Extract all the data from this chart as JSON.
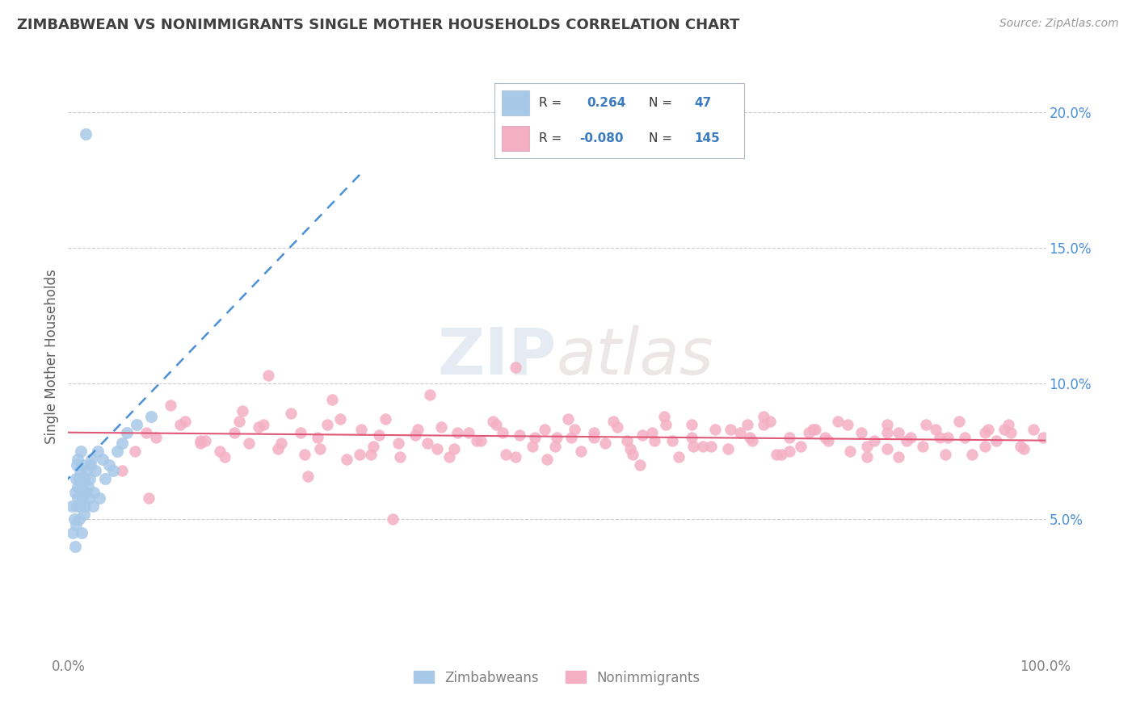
{
  "title": "ZIMBABWEAN VS NONIMMIGRANTS SINGLE MOTHER HOUSEHOLDS CORRELATION CHART",
  "source": "Source: ZipAtlas.com",
  "ylabel": "Single Mother Households",
  "xlim": [
    0.0,
    1.0
  ],
  "ylim": [
    0.0,
    0.22
  ],
  "yticks": [
    0.05,
    0.1,
    0.15,
    0.2
  ],
  "ytick_labels": [
    "5.0%",
    "10.0%",
    "15.0%",
    "20.0%"
  ],
  "xticks": [
    0.0,
    1.0
  ],
  "xtick_labels": [
    "0.0%",
    "100.0%"
  ],
  "blue_color": "#a8c8e8",
  "blue_edge": "#6aaed6",
  "pink_color": "#f4afc4",
  "pink_edge": "#e87090",
  "blue_line_color": "#4a90d9",
  "pink_line_color": "#e05878",
  "watermark_text": "ZIPatlas",
  "legend_r1": "R =  0.264",
  "legend_n1": "N =  47",
  "legend_r2": "R = -0.080",
  "legend_n2": "N = 145",
  "background_color": "#ffffff",
  "grid_color": "#cccccc",
  "title_color": "#404040",
  "axis_label_color": "#606060",
  "tick_color": "#808080",
  "legend_text_color": "#333333",
  "legend_value_color": "#3a7abf",
  "blue_x": [
    0.004,
    0.005,
    0.006,
    0.007,
    0.007,
    0.008,
    0.008,
    0.009,
    0.009,
    0.01,
    0.01,
    0.01,
    0.011,
    0.011,
    0.012,
    0.012,
    0.013,
    0.013,
    0.014,
    0.014,
    0.015,
    0.015,
    0.016,
    0.016,
    0.017,
    0.018,
    0.019,
    0.02,
    0.021,
    0.022,
    0.023,
    0.024,
    0.025,
    0.026,
    0.028,
    0.03,
    0.032,
    0.035,
    0.038,
    0.042,
    0.046,
    0.05,
    0.055,
    0.06,
    0.07,
    0.085,
    0.018
  ],
  "blue_y": [
    0.055,
    0.045,
    0.05,
    0.06,
    0.04,
    0.065,
    0.048,
    0.055,
    0.07,
    0.058,
    0.062,
    0.072,
    0.065,
    0.05,
    0.068,
    0.055,
    0.06,
    0.075,
    0.062,
    0.045,
    0.058,
    0.07,
    0.065,
    0.052,
    0.055,
    0.06,
    0.068,
    0.062,
    0.058,
    0.065,
    0.07,
    0.072,
    0.055,
    0.06,
    0.068,
    0.075,
    0.058,
    0.072,
    0.065,
    0.07,
    0.068,
    0.075,
    0.078,
    0.082,
    0.085,
    0.088,
    0.192
  ],
  "pink_x": [
    0.055,
    0.08,
    0.105,
    0.12,
    0.14,
    0.155,
    0.17,
    0.185,
    0.2,
    0.215,
    0.228,
    0.242,
    0.255,
    0.27,
    0.285,
    0.3,
    0.312,
    0.325,
    0.34,
    0.355,
    0.368,
    0.382,
    0.395,
    0.41,
    0.422,
    0.435,
    0.448,
    0.462,
    0.475,
    0.488,
    0.5,
    0.512,
    0.525,
    0.538,
    0.55,
    0.562,
    0.575,
    0.588,
    0.6,
    0.612,
    0.625,
    0.638,
    0.65,
    0.662,
    0.675,
    0.688,
    0.7,
    0.712,
    0.725,
    0.738,
    0.75,
    0.762,
    0.775,
    0.788,
    0.8,
    0.812,
    0.825,
    0.838,
    0.85,
    0.862,
    0.875,
    0.888,
    0.9,
    0.912,
    0.925,
    0.938,
    0.95,
    0.962,
    0.975,
    0.988,
    0.068,
    0.09,
    0.115,
    0.135,
    0.16,
    0.178,
    0.195,
    0.218,
    0.238,
    0.258,
    0.278,
    0.298,
    0.318,
    0.338,
    0.358,
    0.378,
    0.398,
    0.418,
    0.438,
    0.458,
    0.478,
    0.498,
    0.518,
    0.538,
    0.558,
    0.578,
    0.598,
    0.618,
    0.638,
    0.658,
    0.678,
    0.698,
    0.718,
    0.738,
    0.758,
    0.778,
    0.798,
    0.818,
    0.838,
    0.858,
    0.878,
    0.898,
    0.918,
    0.938,
    0.958,
    0.978,
    0.998,
    0.245,
    0.37,
    0.49,
    0.61,
    0.73,
    0.85,
    0.135,
    0.265,
    0.39,
    0.515,
    0.64,
    0.765,
    0.892,
    0.175,
    0.31,
    0.445,
    0.572,
    0.695,
    0.818,
    0.942,
    0.082,
    0.205,
    0.332,
    0.458,
    0.585,
    0.712,
    0.838,
    0.965
  ],
  "pink_y": [
    0.068,
    0.082,
    0.092,
    0.086,
    0.079,
    0.075,
    0.082,
    0.078,
    0.085,
    0.076,
    0.089,
    0.074,
    0.08,
    0.094,
    0.072,
    0.083,
    0.077,
    0.087,
    0.073,
    0.081,
    0.078,
    0.084,
    0.076,
    0.082,
    0.079,
    0.086,
    0.074,
    0.081,
    0.077,
    0.083,
    0.08,
    0.087,
    0.075,
    0.082,
    0.078,
    0.084,
    0.076,
    0.081,
    0.079,
    0.085,
    0.073,
    0.08,
    0.077,
    0.083,
    0.076,
    0.082,
    0.079,
    0.085,
    0.074,
    0.08,
    0.077,
    0.083,
    0.08,
    0.086,
    0.075,
    0.082,
    0.079,
    0.085,
    0.073,
    0.08,
    0.077,
    0.083,
    0.08,
    0.086,
    0.074,
    0.082,
    0.079,
    0.085,
    0.077,
    0.083,
    0.075,
    0.08,
    0.085,
    0.078,
    0.073,
    0.09,
    0.084,
    0.078,
    0.082,
    0.076,
    0.087,
    0.074,
    0.081,
    0.078,
    0.083,
    0.076,
    0.082,
    0.079,
    0.085,
    0.073,
    0.08,
    0.077,
    0.083,
    0.08,
    0.086,
    0.074,
    0.082,
    0.079,
    0.085,
    0.077,
    0.083,
    0.08,
    0.086,
    0.075,
    0.082,
    0.079,
    0.085,
    0.073,
    0.082,
    0.079,
    0.085,
    0.074,
    0.08,
    0.077,
    0.083,
    0.076,
    0.08,
    0.066,
    0.096,
    0.072,
    0.088,
    0.074,
    0.082,
    0.079,
    0.085,
    0.073,
    0.08,
    0.077,
    0.083,
    0.08,
    0.086,
    0.074,
    0.082,
    0.079,
    0.085,
    0.077,
    0.083,
    0.058,
    0.103,
    0.05,
    0.106,
    0.07,
    0.088,
    0.076,
    0.082
  ]
}
